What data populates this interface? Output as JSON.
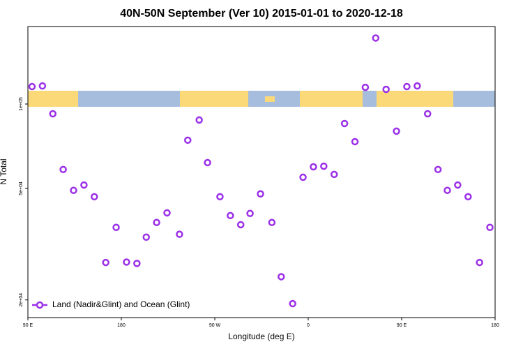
{
  "chart_data": {
    "type": "scatter",
    "title": "40N-50N September (Ver 10)   2015-01-01 to 2020-12-18",
    "xlabel": "Longitude (deg E)",
    "ylabel": "N Total",
    "log_y": true,
    "legend": "lower left",
    "xlim": [
      90,
      540
    ],
    "ylim": [
      17300,
      189000
    ],
    "xticks": [
      {
        "value": 90,
        "label": "90 E"
      },
      {
        "value": 180,
        "label": "180"
      },
      {
        "value": 270,
        "label": "90 W"
      },
      {
        "value": 360,
        "label": "0"
      },
      {
        "value": 450,
        "label": "90 E"
      },
      {
        "value": 540,
        "label": "180"
      }
    ],
    "yticks": [
      {
        "value": 20000,
        "label": "2e+04"
      },
      {
        "value": 50000,
        "label": "5e+04"
      },
      {
        "value": 100000,
        "label": "1e+05"
      }
    ],
    "series": [
      {
        "name": "Land (Nadir&Glint) and Ocean (Glint)",
        "color": "#9b30e8",
        "x": [
          94,
          104,
          114,
          124,
          134,
          144,
          154,
          165,
          175,
          185,
          195,
          204,
          214,
          224,
          236,
          244,
          255,
          263,
          275,
          285,
          295,
          304,
          314,
          325,
          334,
          345,
          355,
          365,
          375,
          385,
          395,
          405,
          415,
          425,
          435,
          445,
          455,
          465,
          475,
          485,
          494,
          504,
          514,
          525,
          535
        ],
        "values": [
          115400,
          116000,
          92300,
          58400,
          49200,
          51400,
          46700,
          27200,
          36300,
          27300,
          27000,
          33500,
          37800,
          40900,
          34300,
          74300,
          87700,
          61800,
          46700,
          40000,
          37100,
          40700,
          47800,
          37800,
          24200,
          19400,
          54800,
          59700,
          60000,
          56100,
          85200,
          73400,
          114700,
          172000,
          112800,
          80000,
          115400,
          116000,
          92300,
          58400,
          49200,
          51400,
          46700,
          27200,
          36300
        ]
      }
    ]
  }
}
